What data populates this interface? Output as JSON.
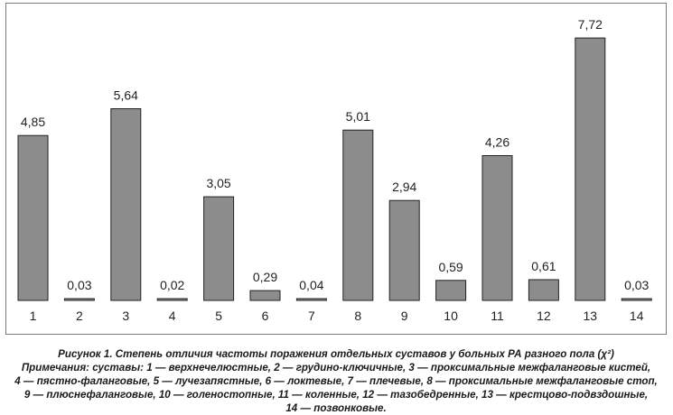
{
  "chart_data": {
    "type": "bar",
    "categories": [
      "1",
      "2",
      "3",
      "4",
      "5",
      "6",
      "7",
      "8",
      "9",
      "10",
      "11",
      "12",
      "13",
      "14"
    ],
    "values": [
      4.85,
      0.03,
      5.64,
      0.02,
      3.05,
      0.29,
      0.04,
      5.01,
      2.94,
      0.59,
      4.26,
      0.61,
      7.72,
      0.03
    ],
    "value_labels": [
      "4,85",
      "0,03",
      "5,64",
      "0,02",
      "3,05",
      "0,29",
      "0,04",
      "5,01",
      "2,94",
      "0,59",
      "4,26",
      "0,61",
      "7,72",
      "0,03"
    ],
    "bar_color": "#8c8c8c",
    "bar_edge_color": "#222222",
    "ylim": [
      0,
      8.2
    ],
    "grid": false,
    "legend": "none",
    "title": "",
    "xlabel": "",
    "ylabel": ""
  },
  "caption": {
    "line1": "Рисунок 1. Степень отличия частоты поражения отдельных суставов у больных РА разного пола (χ²)",
    "line2": "Примечания: суставы: 1 — верхнечелюстные, 2 — грудино-ключичные, 3 — проксимальные межфаланговые кистей,",
    "line3": "4 — пястно-фаланговые, 5 — лучезапястные, 6 — локтевые, 7 — плечевые, 8 — проксимальные межфаланговые стоп,",
    "line4": "9 — плюснефаланговые, 10 — голеностопные, 11 — коленные, 12 — тазобедренные, 13 — крестцово-подвздошные,",
    "line5": "14 — позвонковые."
  }
}
